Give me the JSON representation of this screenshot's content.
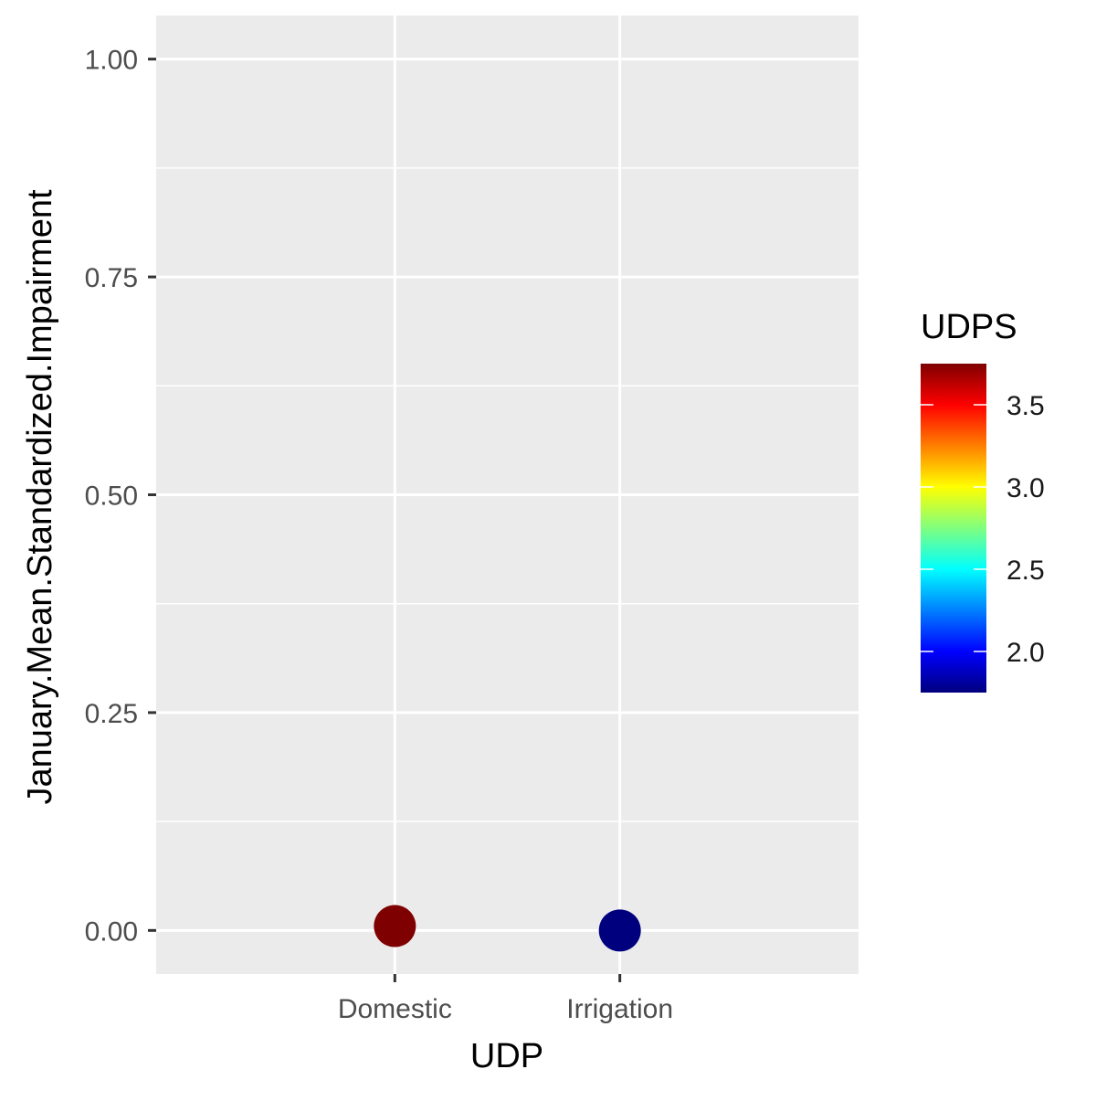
{
  "chart_data": {
    "type": "scatter",
    "xlabel": "UDP",
    "ylabel": "January.Mean.Standardized.Impairment",
    "categories": [
      "Domestic",
      "Irrigation"
    ],
    "points": [
      {
        "x": "Domestic",
        "y": 0.005,
        "color_value": 3.75
      },
      {
        "x": "Irrigation",
        "y": 0.0,
        "color_value": 1.75
      }
    ],
    "ylim": [
      -0.05,
      1.05
    ],
    "y_ticks": [
      0.0,
      0.25,
      0.5,
      0.75,
      1.0
    ],
    "y_tick_labels": [
      "0.00",
      "0.25",
      "0.50",
      "0.75",
      "1.00"
    ],
    "grid": true,
    "panel_background": "#ebebeb",
    "grid_color": "#ffffff",
    "colorbar": {
      "title": "UDPS",
      "min": 1.75,
      "max": 3.75,
      "ticks": [
        2.0,
        2.5,
        3.0,
        3.5
      ],
      "tick_labels": [
        "2.0",
        "2.5",
        "3.0",
        "3.5"
      ],
      "colors": [
        "#00007f",
        "#0000ff",
        "#007fff",
        "#00ffff",
        "#7fff7f",
        "#ffff00",
        "#ff7f00",
        "#ff0000",
        "#7f0000"
      ]
    },
    "legend_position": "right"
  }
}
